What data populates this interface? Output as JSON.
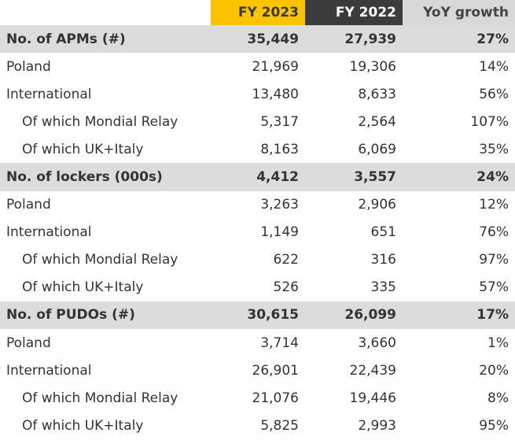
{
  "header": {
    "label": "",
    "fy2023": "FY 2023",
    "fy2022": "FY 2022",
    "yoy": "YoY growth"
  },
  "colors": {
    "fy2023_header": "#fdc300",
    "fy2022_header": "#3b3b3b",
    "yoy_header": "#d8d8d8",
    "section_row": "#dcdcdc"
  },
  "rows": [
    {
      "type": "section",
      "label": "No. of APMs (#)",
      "fy2023": "35,449",
      "fy2022": "27,939",
      "yoy": "27%"
    },
    {
      "type": "row",
      "label": "Poland",
      "fy2023": "21,969",
      "fy2022": "19,306",
      "yoy": "14%"
    },
    {
      "type": "row",
      "label": "International",
      "fy2023": "13,480",
      "fy2022": "8,633",
      "yoy": "56%"
    },
    {
      "type": "sub",
      "label": "Of which Mondial Relay",
      "fy2023": "5,317",
      "fy2022": "2,564",
      "yoy": "107%"
    },
    {
      "type": "sub",
      "label": "Of which UK+Italy",
      "fy2023": "8,163",
      "fy2022": "6,069",
      "yoy": "35%"
    },
    {
      "type": "section",
      "label": "No. of lockers (000s)",
      "fy2023": "4,412",
      "fy2022": "3,557",
      "yoy": "24%"
    },
    {
      "type": "row",
      "label": "Poland",
      "fy2023": "3,263",
      "fy2022": "2,906",
      "yoy": "12%"
    },
    {
      "type": "row",
      "label": "International",
      "fy2023": "1,149",
      "fy2022": "651",
      "yoy": "76%"
    },
    {
      "type": "sub",
      "label": "Of which Mondial Relay",
      "fy2023": "622",
      "fy2022": "316",
      "yoy": "97%"
    },
    {
      "type": "sub",
      "label": "Of which UK+Italy",
      "fy2023": "526",
      "fy2022": "335",
      "yoy": "57%"
    },
    {
      "type": "section",
      "label": "No. of PUDOs (#)",
      "fy2023": "30,615",
      "fy2022": "26,099",
      "yoy": "17%"
    },
    {
      "type": "row",
      "label": "Poland",
      "fy2023": "3,714",
      "fy2022": "3,660",
      "yoy": "1%"
    },
    {
      "type": "row",
      "label": "International",
      "fy2023": "26,901",
      "fy2022": "22,439",
      "yoy": "20%"
    },
    {
      "type": "sub",
      "label": "Of which Mondial Relay",
      "fy2023": "21,076",
      "fy2022": "19,446",
      "yoy": "8%"
    },
    {
      "type": "sub",
      "label": "Of which UK+Italy",
      "fy2023": "5,825",
      "fy2022": "2,993",
      "yoy": "95%"
    }
  ]
}
